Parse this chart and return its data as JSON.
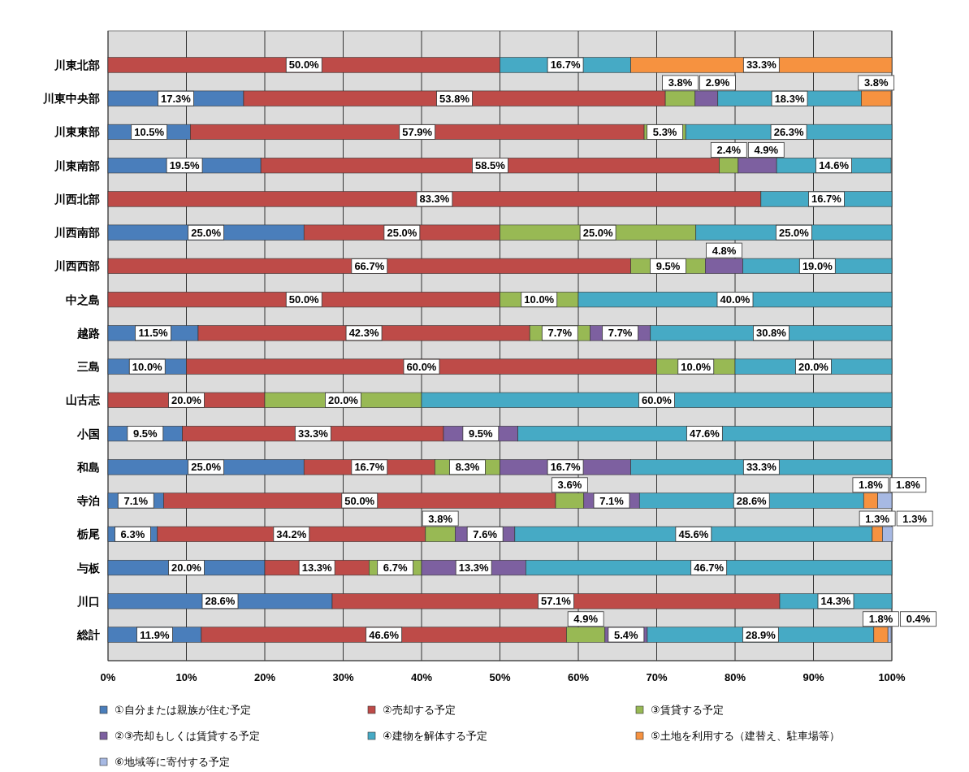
{
  "chart_data": {
    "type": "bar",
    "orientation": "horizontal",
    "stacked": true,
    "grid": "x",
    "legend": "bottom",
    "categories": [
      "川東北部",
      "川東中央部",
      "川東東部",
      "川東南部",
      "川西北部",
      "川西南部",
      "川西西部",
      "中之島",
      "越路",
      "三島",
      "山古志",
      "小国",
      "和島",
      "寺泊",
      "栃尾",
      "与板",
      "川口",
      "総計"
    ],
    "xlim": [
      0,
      100
    ],
    "xticks": [
      {
        "value": 0,
        "label": "0%"
      },
      {
        "value": 10,
        "label": "10%"
      },
      {
        "value": 20,
        "label": "20%"
      },
      {
        "value": 30,
        "label": "30%"
      },
      {
        "value": 40,
        "label": "40%"
      },
      {
        "value": 50,
        "label": "50%"
      },
      {
        "value": 60,
        "label": "60%"
      },
      {
        "value": 70,
        "label": "70%"
      },
      {
        "value": 80,
        "label": "80%"
      },
      {
        "value": 90,
        "label": "90%"
      },
      {
        "value": 100,
        "label": "100%"
      }
    ],
    "series": [
      {
        "name": "①自分または親族が住む予定",
        "color": "#4a7ebb",
        "values": [
          null,
          17.3,
          10.5,
          19.5,
          null,
          25.0,
          null,
          null,
          11.5,
          10.0,
          null,
          9.5,
          25.0,
          7.1,
          6.3,
          20.0,
          28.6,
          11.9
        ],
        "value_labels": [
          null,
          "17.3%",
          "10.5%",
          "19.5%",
          null,
          "25.0%",
          null,
          null,
          "11.5%",
          "10.0%",
          null,
          "9.5%",
          "25.0%",
          "7.1%",
          "6.3%",
          "20.0%",
          "28.6%",
          "11.9%"
        ]
      },
      {
        "name": "②売却する予定",
        "color": "#be4b48",
        "values": [
          50.0,
          53.8,
          57.9,
          58.5,
          83.3,
          25.0,
          66.7,
          50.0,
          42.3,
          60.0,
          20.0,
          33.3,
          16.7,
          50.0,
          34.2,
          13.3,
          57.1,
          46.6
        ],
        "value_labels": [
          "50.0%",
          "53.8%",
          "57.9%",
          "58.5%",
          "83.3%",
          "25.0%",
          "66.7%",
          "50.0%",
          "42.3%",
          "60.0%",
          "20.0%",
          "33.3%",
          "16.7%",
          "50.0%",
          "34.2%",
          "13.3%",
          "57.1%",
          "46.6%"
        ]
      },
      {
        "name": "③賃貸する予定",
        "color": "#98b954",
        "values": [
          null,
          3.8,
          5.3,
          2.4,
          null,
          25.0,
          9.5,
          10.0,
          7.7,
          10.0,
          20.0,
          null,
          8.3,
          3.6,
          3.8,
          6.7,
          null,
          4.9
        ],
        "value_labels": [
          null,
          "3.8%",
          "5.3%",
          "2.4%",
          null,
          "25.0%",
          "9.5%",
          "10.0%",
          "7.7%",
          "10.0%",
          "20.0%",
          null,
          "8.3%",
          "3.6%",
          "3.8%",
          "6.7%",
          null,
          "4.9%"
        ]
      },
      {
        "name": "②③売却もしくは賃貸する予定",
        "color": "#7d60a0",
        "values": [
          null,
          2.9,
          null,
          4.9,
          null,
          null,
          4.8,
          null,
          7.7,
          null,
          null,
          9.5,
          16.7,
          7.1,
          7.6,
          13.3,
          null,
          5.4
        ],
        "value_labels": [
          null,
          "2.9%",
          null,
          "4.9%",
          null,
          null,
          "4.8%",
          null,
          "7.7%",
          null,
          null,
          "9.5%",
          "16.7%",
          "7.1%",
          "7.6%",
          "13.3%",
          null,
          "5.4%"
        ]
      },
      {
        "name": "④建物を解体する予定",
        "color": "#46aac5",
        "values": [
          16.7,
          18.3,
          26.3,
          14.6,
          16.7,
          25.0,
          19.0,
          40.0,
          30.8,
          20.0,
          60.0,
          47.6,
          33.3,
          28.6,
          45.6,
          46.7,
          14.3,
          28.9
        ],
        "value_labels": [
          "16.7%",
          "18.3%",
          "26.3%",
          "14.6%",
          "16.7%",
          "25.0%",
          "19.0%",
          "40.0%",
          "30.8%",
          "20.0%",
          "60.0%",
          "47.6%",
          "33.3%",
          "28.6%",
          "45.6%",
          "46.7%",
          "14.3%",
          "28.9%"
        ]
      },
      {
        "name": "⑤土地を利用する（建替え、駐車場等）",
        "color": "#f69240",
        "values": [
          33.3,
          3.8,
          null,
          null,
          null,
          null,
          null,
          null,
          null,
          null,
          null,
          null,
          null,
          1.8,
          1.3,
          null,
          null,
          1.8
        ],
        "value_labels": [
          "33.3%",
          "3.8%",
          null,
          null,
          null,
          null,
          null,
          null,
          null,
          null,
          null,
          null,
          null,
          "1.8%",
          "1.3%",
          null,
          null,
          "1.8%"
        ]
      },
      {
        "name": "⑥地域等に寄付する予定",
        "color": "#a7b9e3",
        "values": [
          null,
          null,
          null,
          null,
          null,
          null,
          null,
          null,
          null,
          null,
          null,
          null,
          null,
          1.8,
          1.3,
          null,
          null,
          0.4
        ],
        "value_labels": [
          null,
          null,
          null,
          null,
          null,
          null,
          null,
          null,
          null,
          null,
          null,
          null,
          null,
          "1.8%",
          "1.3%",
          null,
          null,
          "0.4%"
        ]
      }
    ]
  }
}
